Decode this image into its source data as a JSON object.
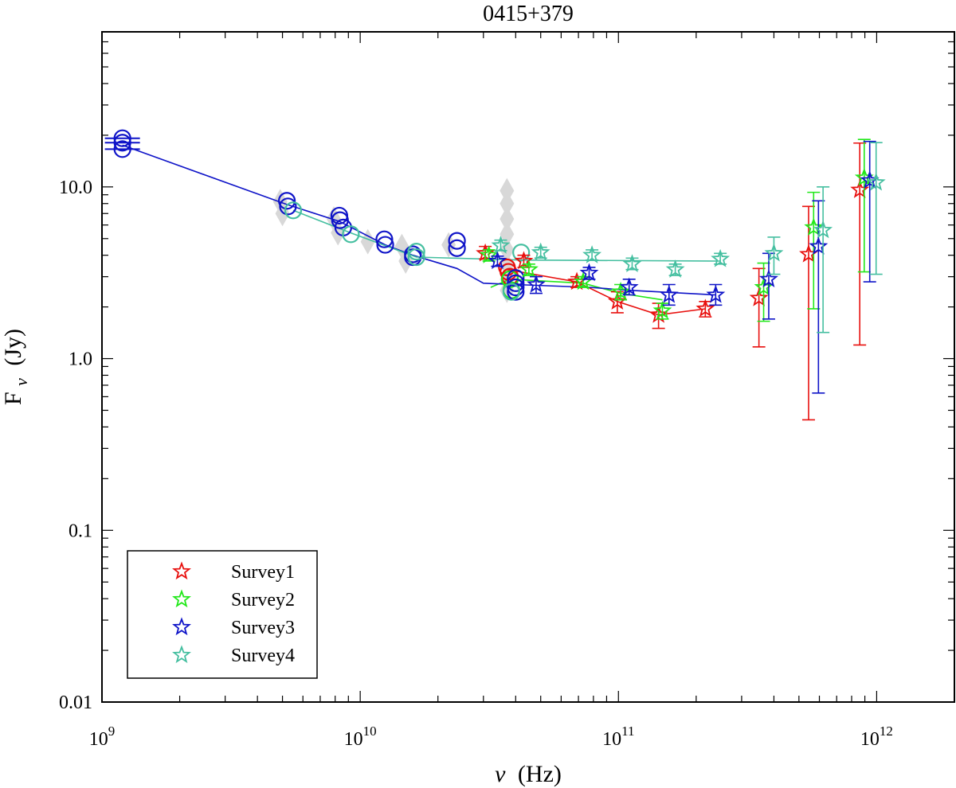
{
  "chart_data": {
    "type": "scatter",
    "title": "0415+379",
    "xlabel": {
      "base": "ν",
      "unit": "(Hz)"
    },
    "ylabel": {
      "base": "F",
      "sub": "ν",
      "unit": "(Jy)"
    },
    "x_scale": "log",
    "y_scale": "log",
    "xlim": [
      1000000000.0,
      2000000000000.0
    ],
    "ylim": [
      0.01,
      80
    ],
    "grid": false,
    "legend_position": "bottom-left",
    "x_ticks": [
      {
        "value": 1000000000.0,
        "base": "10",
        "exp": "9"
      },
      {
        "value": 10000000000.0,
        "base": "10",
        "exp": "10"
      },
      {
        "value": 100000000000.0,
        "base": "10",
        "exp": "11"
      },
      {
        "value": 1000000000000.0,
        "base": "10",
        "exp": "12"
      }
    ],
    "y_ticks": [
      {
        "value": 0.01,
        "label": "0.01"
      },
      {
        "value": 0.1,
        "label": "0.1"
      },
      {
        "value": 1,
        "label": "1.0"
      },
      {
        "value": 10,
        "label": "10.0"
      }
    ],
    "colors": {
      "survey1": "#e8100e",
      "survey2": "#22e81a",
      "survey3": "#0f14c8",
      "survey4": "#45bfa0",
      "archival": "#d8d8d8"
    },
    "archival": [
      {
        "x": 4900000000.0,
        "y": 8.2
      },
      {
        "x": 5000000000.0,
        "y": 7.0
      },
      {
        "x": 7900000000.0,
        "y": 6.5
      },
      {
        "x": 8200000000.0,
        "y": 5.4
      },
      {
        "x": 10700000000.0,
        "y": 4.8
      },
      {
        "x": 14500000000.0,
        "y": 4.5
      },
      {
        "x": 15000000000.0,
        "y": 3.7
      },
      {
        "x": 22000000000.0,
        "y": 4.6
      },
      {
        "x": 37000000000.0,
        "y": 9.5
      },
      {
        "x": 37000000000.0,
        "y": 8.0
      },
      {
        "x": 37000000000.0,
        "y": 6.5
      },
      {
        "x": 37000000000.0,
        "y": 5.3
      },
      {
        "x": 37000000000.0,
        "y": 4.3
      },
      {
        "x": 37000000000.0,
        "y": 3.5
      },
      {
        "x": 37000000000.0,
        "y": 2.9
      },
      {
        "x": 37000000000.0,
        "y": 2.5
      }
    ],
    "series": [
      {
        "name": "Survey1",
        "color_key": "survey1",
        "circles": [
          {
            "x": 37000000000.0,
            "y": 3.4
          },
          {
            "x": 37500000000.0,
            "y": 3.2
          },
          {
            "x": 38000000000.0,
            "y": 3.0
          }
        ],
        "stars": [
          {
            "x": 30500000000.0,
            "y": 4.1,
            "lo": 3.8,
            "hi": 4.5
          },
          {
            "x": 43000000000.0,
            "y": 3.7,
            "lo": 3.4,
            "hi": 4.0
          },
          {
            "x": 69000000000.0,
            "y": 2.8,
            "lo": 2.6,
            "hi": 3.0
          },
          {
            "x": 99000000000.0,
            "y": 2.15,
            "lo": 1.85,
            "hi": 2.45
          },
          {
            "x": 143000000000.0,
            "y": 1.8,
            "lo": 1.5,
            "hi": 2.1
          },
          {
            "x": 217000000000.0,
            "y": 1.95,
            "lo": 1.75,
            "hi": 2.15
          },
          {
            "x": 350000000000.0,
            "y": 2.25,
            "lo": 1.17,
            "hi": 3.35
          },
          {
            "x": 545000000000.0,
            "y": 4.05,
            "lo": 0.44,
            "hi": 7.7
          },
          {
            "x": 860000000000.0,
            "y": 9.6,
            "lo": 1.2,
            "hi": 18.0
          }
        ],
        "line": [
          {
            "x": 37000000000.0,
            "y": 3.3
          },
          {
            "x": 69000000000.0,
            "y": 2.8
          },
          {
            "x": 99000000000.0,
            "y": 2.15
          },
          {
            "x": 143000000000.0,
            "y": 1.8
          },
          {
            "x": 217000000000.0,
            "y": 1.95
          }
        ]
      },
      {
        "name": "Survey2",
        "color_key": "survey2",
        "circles": [
          {
            "x": 38000000000.0,
            "y": 2.9
          },
          {
            "x": 38500000000.0,
            "y": 2.5
          }
        ],
        "stars": [
          {
            "x": 31500000000.0,
            "y": 4.0,
            "lo": 3.7,
            "hi": 4.3
          },
          {
            "x": 45000000000.0,
            "y": 3.3,
            "lo": 3.05,
            "hi": 3.55
          },
          {
            "x": 73000000000.0,
            "y": 2.8,
            "lo": 2.6,
            "hi": 3.0
          },
          {
            "x": 102000000000.0,
            "y": 2.45,
            "lo": 2.2,
            "hi": 2.7
          },
          {
            "x": 148000000000.0,
            "y": 1.9,
            "lo": 1.7,
            "hi": 2.1
          },
          {
            "x": 365000000000.0,
            "y": 2.6,
            "lo": 1.65,
            "hi": 3.6
          },
          {
            "x": 570000000000.0,
            "y": 5.8,
            "lo": 1.95,
            "hi": 9.3
          },
          {
            "x": 895000000000.0,
            "y": 11.3,
            "lo": 3.2,
            "hi": 18.9
          }
        ],
        "line": [
          {
            "x": 32000000000.0,
            "y": 2.6
          },
          {
            "x": 38000000000.0,
            "y": 2.9
          },
          {
            "x": 73000000000.0,
            "y": 2.75
          },
          {
            "x": 102000000000.0,
            "y": 2.4
          },
          {
            "x": 148000000000.0,
            "y": 2.2
          }
        ]
      },
      {
        "name": "Survey3",
        "color_key": "survey3",
        "circles": [
          {
            "x": 1200000000.0,
            "y": 19.2
          },
          {
            "x": 1200000000.0,
            "y": 18.1
          },
          {
            "x": 1200000000.0,
            "y": 16.6
          },
          {
            "x": 5200000000.0,
            "y": 8.3
          },
          {
            "x": 5250000000.0,
            "y": 7.7
          },
          {
            "x": 8300000000.0,
            "y": 6.8
          },
          {
            "x": 8350000000.0,
            "y": 6.4
          },
          {
            "x": 8600000000.0,
            "y": 5.8
          },
          {
            "x": 12400000000.0,
            "y": 4.95
          },
          {
            "x": 12500000000.0,
            "y": 4.6
          },
          {
            "x": 16000000000.0,
            "y": 4.05
          },
          {
            "x": 16000000000.0,
            "y": 3.9
          },
          {
            "x": 23700000000.0,
            "y": 4.85
          },
          {
            "x": 23700000000.0,
            "y": 4.4
          },
          {
            "x": 40000000000.0,
            "y": 2.95
          },
          {
            "x": 40000000000.0,
            "y": 2.75
          },
          {
            "x": 40000000000.0,
            "y": 2.6
          },
          {
            "x": 40000000000.0,
            "y": 2.45
          }
        ],
        "stars": [
          {
            "x": 34000000000.0,
            "y": 3.7,
            "lo": 3.45,
            "hi": 3.95
          },
          {
            "x": 48000000000.0,
            "y": 2.7,
            "lo": 2.4,
            "hi": 3.0
          },
          {
            "x": 77000000000.0,
            "y": 3.15,
            "lo": 2.9,
            "hi": 3.4
          },
          {
            "x": 110000000000.0,
            "y": 2.6,
            "lo": 2.35,
            "hi": 2.9
          },
          {
            "x": 157000000000.0,
            "y": 2.35,
            "lo": 2.05,
            "hi": 2.7
          },
          {
            "x": 238000000000.0,
            "y": 2.35,
            "lo": 2.05,
            "hi": 2.7
          },
          {
            "x": 382000000000.0,
            "y": 2.9,
            "lo": 1.7,
            "hi": 4.1
          },
          {
            "x": 595000000000.0,
            "y": 4.5,
            "lo": 0.63,
            "hi": 8.3
          },
          {
            "x": 940000000000.0,
            "y": 10.9,
            "lo": 2.8,
            "hi": 18.4
          }
        ],
        "line": [
          {
            "x": 1200000000.0,
            "y": 17.5
          },
          {
            "x": 5200000000.0,
            "y": 7.9
          },
          {
            "x": 8300000000.0,
            "y": 6.3
          },
          {
            "x": 12500000000.0,
            "y": 4.6
          },
          {
            "x": 16000000000.0,
            "y": 4.0
          },
          {
            "x": 23700000000.0,
            "y": 3.35
          },
          {
            "x": 30000000000.0,
            "y": 2.75
          },
          {
            "x": 40000000000.0,
            "y": 2.7
          },
          {
            "x": 77000000000.0,
            "y": 2.6
          },
          {
            "x": 110000000000.0,
            "y": 2.5
          },
          {
            "x": 238000000000.0,
            "y": 2.35
          }
        ]
      },
      {
        "name": "Survey4",
        "color_key": "survey4",
        "circles": [
          {
            "x": 5500000000.0,
            "y": 7.3
          },
          {
            "x": 9200000000.0,
            "y": 5.3
          },
          {
            "x": 16500000000.0,
            "y": 4.2
          },
          {
            "x": 16500000000.0,
            "y": 3.9
          },
          {
            "x": 42000000000.0,
            "y": 4.15
          },
          {
            "x": 38500000000.0,
            "y": 2.45
          }
        ],
        "stars": [
          {
            "x": 35000000000.0,
            "y": 4.55,
            "lo": 4.25,
            "hi": 4.9
          },
          {
            "x": 50000000000.0,
            "y": 4.15,
            "lo": 3.85,
            "hi": 4.45
          },
          {
            "x": 79000000000.0,
            "y": 4.0,
            "lo": 3.75,
            "hi": 4.3
          },
          {
            "x": 113000000000.0,
            "y": 3.55,
            "lo": 3.3,
            "hi": 3.85
          },
          {
            "x": 166000000000.0,
            "y": 3.3,
            "lo": 3.05,
            "hi": 3.55
          },
          {
            "x": 248000000000.0,
            "y": 3.8,
            "lo": 3.55,
            "hi": 4.1
          },
          {
            "x": 400000000000.0,
            "y": 4.1,
            "lo": 3.1,
            "hi": 5.1
          },
          {
            "x": 620000000000.0,
            "y": 5.6,
            "lo": 1.42,
            "hi": 10.0
          },
          {
            "x": 995000000000.0,
            "y": 10.6,
            "lo": 3.1,
            "hi": 18.1
          }
        ],
        "line": [
          {
            "x": 5500000000.0,
            "y": 7.3
          },
          {
            "x": 9200000000.0,
            "y": 5.4
          },
          {
            "x": 16500000000.0,
            "y": 3.9
          },
          {
            "x": 42000000000.0,
            "y": 3.75
          },
          {
            "x": 248000000000.0,
            "y": 3.7
          }
        ]
      }
    ]
  }
}
